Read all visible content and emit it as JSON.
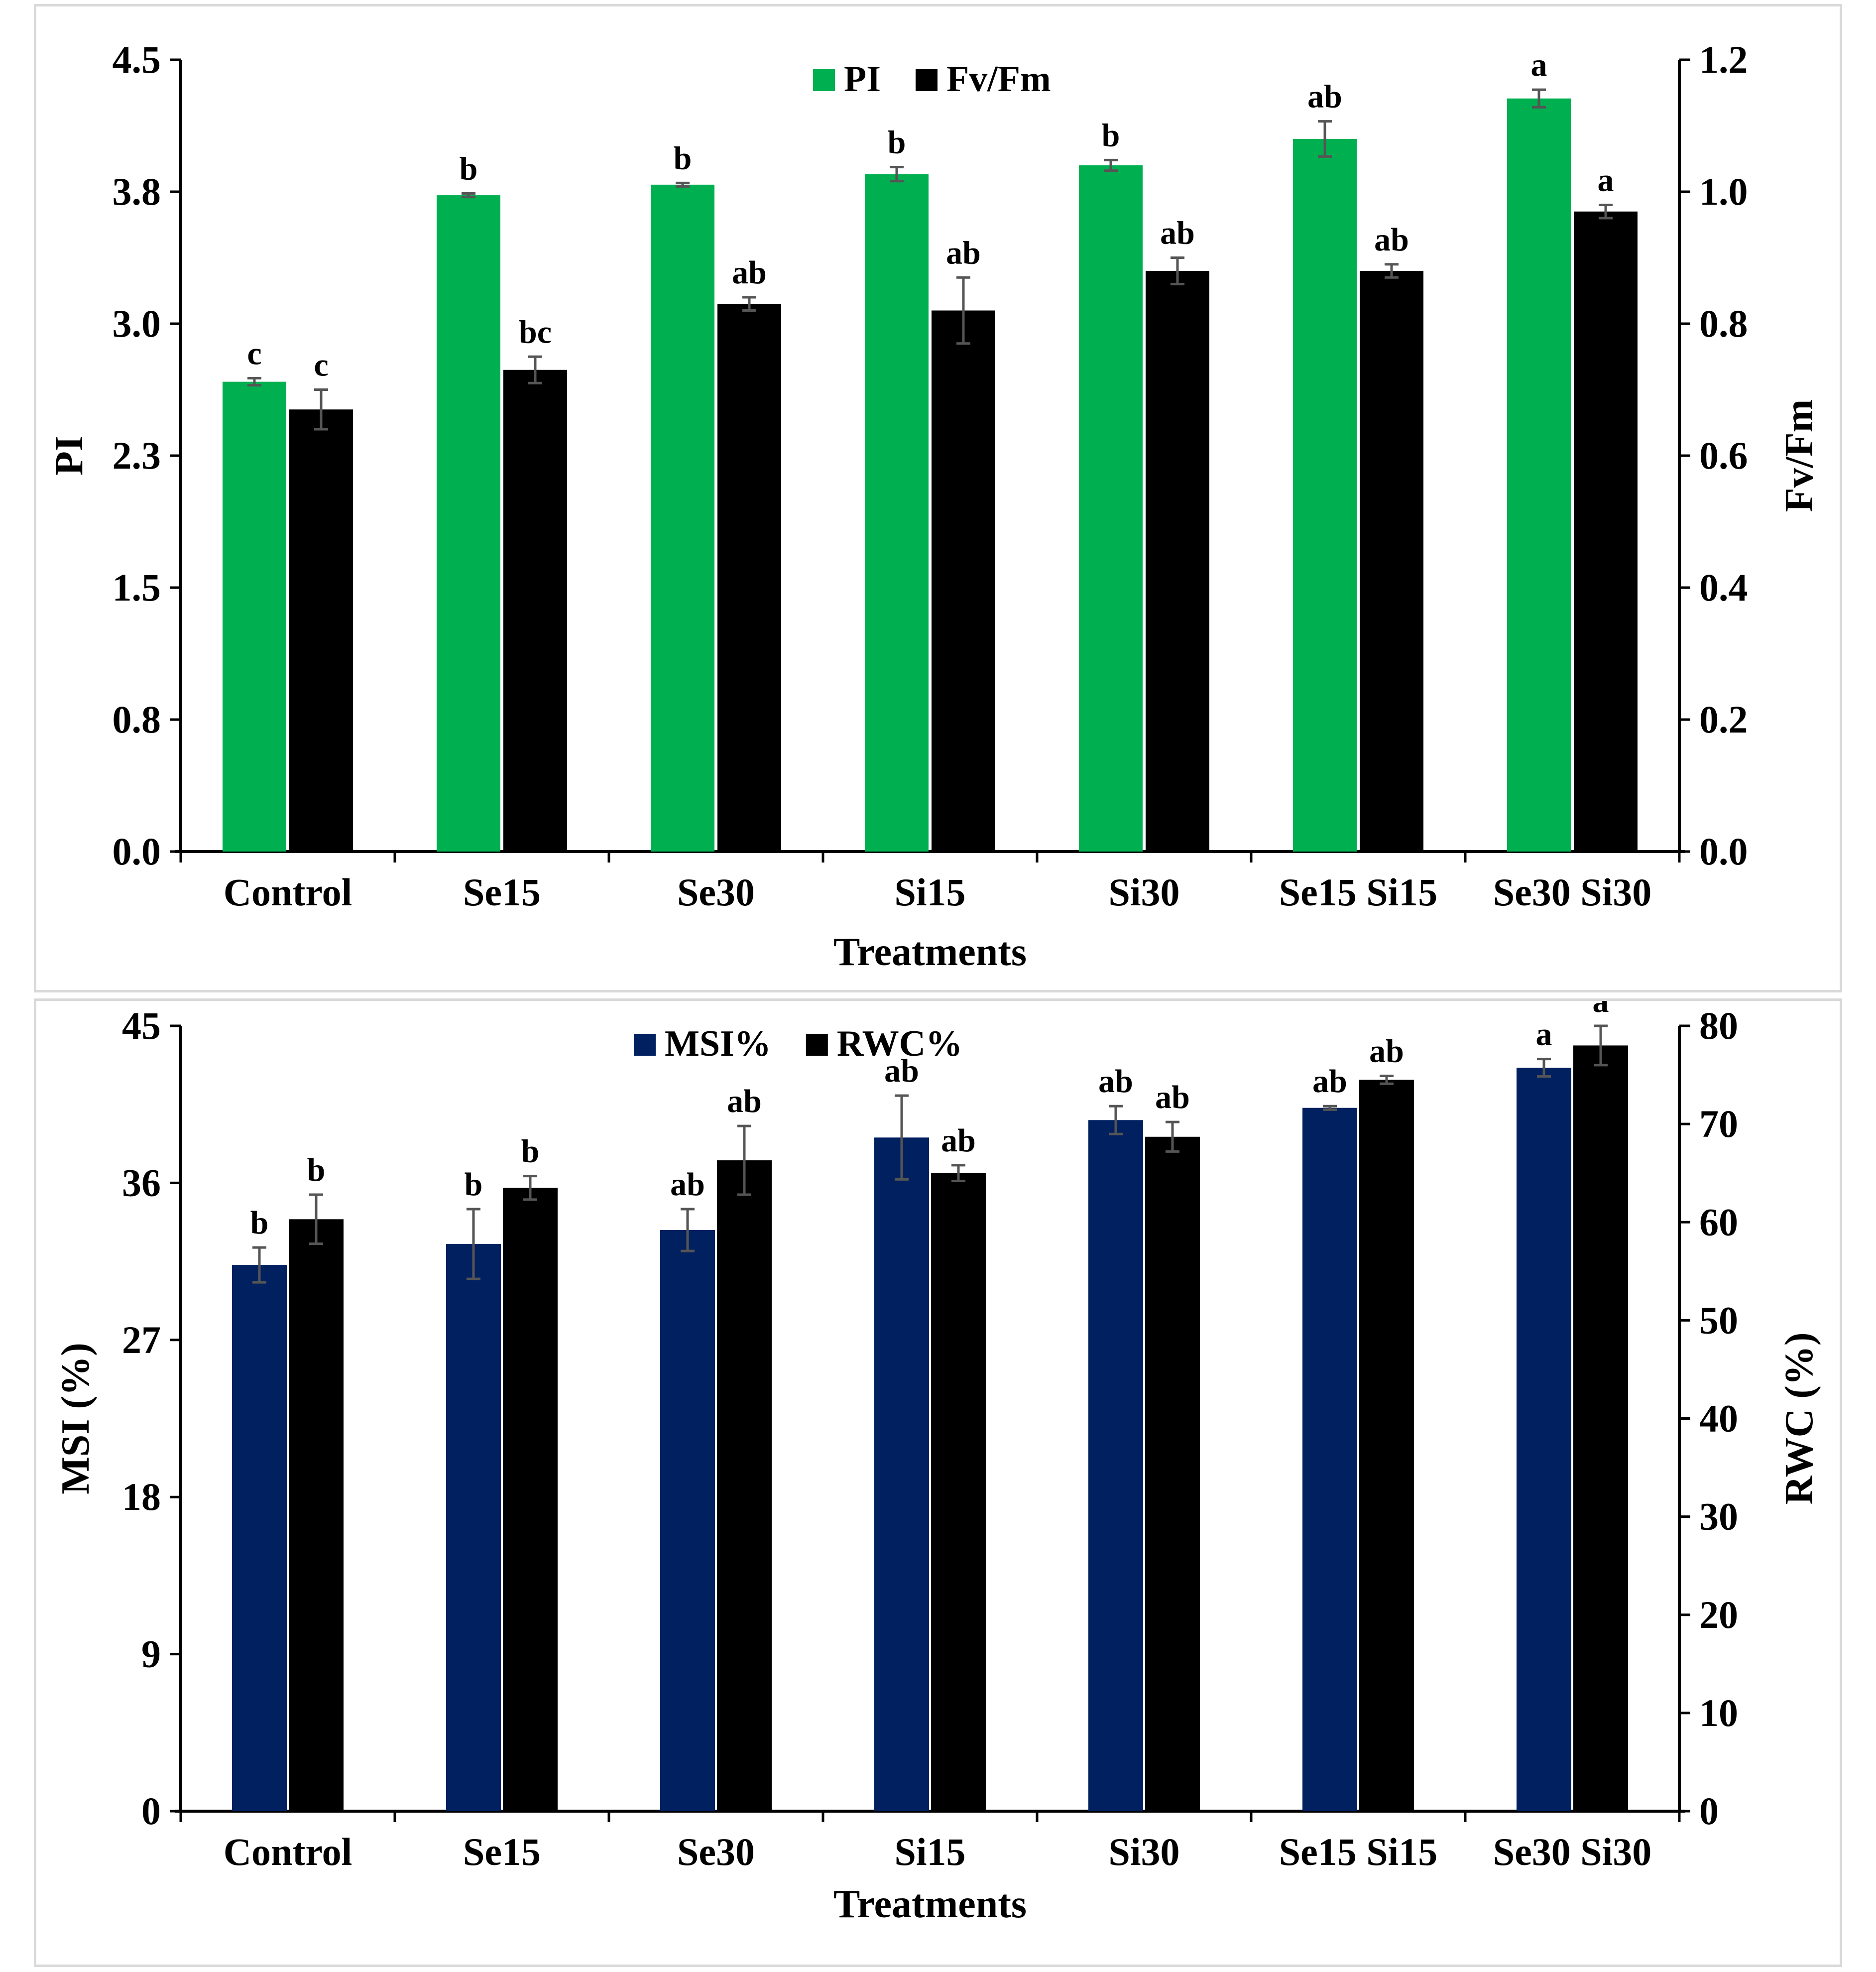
{
  "chart_data": [
    {
      "type": "bar",
      "categories": [
        "Control",
        "Se15",
        "Se30",
        "Si15",
        "Si30",
        "Se15 Si15",
        "Se30 Si30"
      ],
      "xlabel": "Treatments",
      "ylabel": "PI",
      "ylabel_right": "Fv/Fm",
      "ylim": [
        0,
        4.5
      ],
      "ylim_right": [
        0,
        1.2
      ],
      "yticks": [
        "0.0",
        "0.8",
        "1.5",
        "2.3",
        "3.0",
        "3.8",
        "4.5"
      ],
      "yticks_right": [
        "0.0",
        "0.2",
        "0.4",
        "0.6",
        "0.8",
        "1.0",
        "1.2"
      ],
      "grid": false,
      "legend_position": "top-center",
      "series": [
        {
          "name": "PI",
          "axis": "left",
          "color": "#00b050",
          "values": [
            2.67,
            3.73,
            3.79,
            3.85,
            3.9,
            4.05,
            4.28
          ],
          "errors": [
            0.02,
            0.01,
            0.01,
            0.04,
            0.03,
            0.1,
            0.05
          ],
          "letters": [
            "c",
            "b",
            "b",
            "b",
            "b",
            "ab",
            "a"
          ]
        },
        {
          "name": "Fv/Fm",
          "axis": "right",
          "color": "#000000",
          "values": [
            0.67,
            0.73,
            0.83,
            0.82,
            0.88,
            0.88,
            0.97
          ],
          "errors": [
            0.03,
            0.02,
            0.01,
            0.05,
            0.02,
            0.01,
            0.01
          ],
          "letters": [
            "c",
            "bc",
            "ab",
            "ab",
            "ab",
            "ab",
            "a"
          ]
        }
      ]
    },
    {
      "type": "bar",
      "categories": [
        "Control",
        "Se15",
        "Se30",
        "Si15",
        "Si30",
        "Se15 Si15",
        "Se30 Si30"
      ],
      "xlabel": "Treatments",
      "ylabel": "MSI (%)",
      "ylabel_right": "RWC (%)",
      "ylim": [
        0,
        45
      ],
      "ylim_right": [
        0,
        80
      ],
      "yticks": [
        "0",
        "9",
        "18",
        "27",
        "36",
        "45"
      ],
      "yticks_right": [
        "0",
        "10",
        "20",
        "30",
        "40",
        "50",
        "60",
        "70",
        "80"
      ],
      "grid": false,
      "legend_position": "top-center",
      "series": [
        {
          "name": "MSI%",
          "axis": "left",
          "color": "#002060",
          "values": [
            31.3,
            32.5,
            33.3,
            38.6,
            39.6,
            40.3,
            42.6
          ],
          "errors": [
            1.0,
            2.0,
            1.2,
            2.4,
            0.8,
            0.1,
            0.5
          ],
          "letters": [
            "b",
            "b",
            "ab",
            "ab",
            "ab",
            "ab",
            "a"
          ]
        },
        {
          "name": "RWC%",
          "axis": "right",
          "color": "#000000",
          "values": [
            60.3,
            63.5,
            66.3,
            65.0,
            68.7,
            74.5,
            78.0
          ],
          "errors": [
            2.5,
            1.2,
            3.5,
            0.8,
            1.5,
            0.4,
            2.0
          ],
          "letters": [
            "b",
            "b",
            "ab",
            "ab",
            "ab",
            "ab",
            "a"
          ]
        }
      ]
    }
  ]
}
